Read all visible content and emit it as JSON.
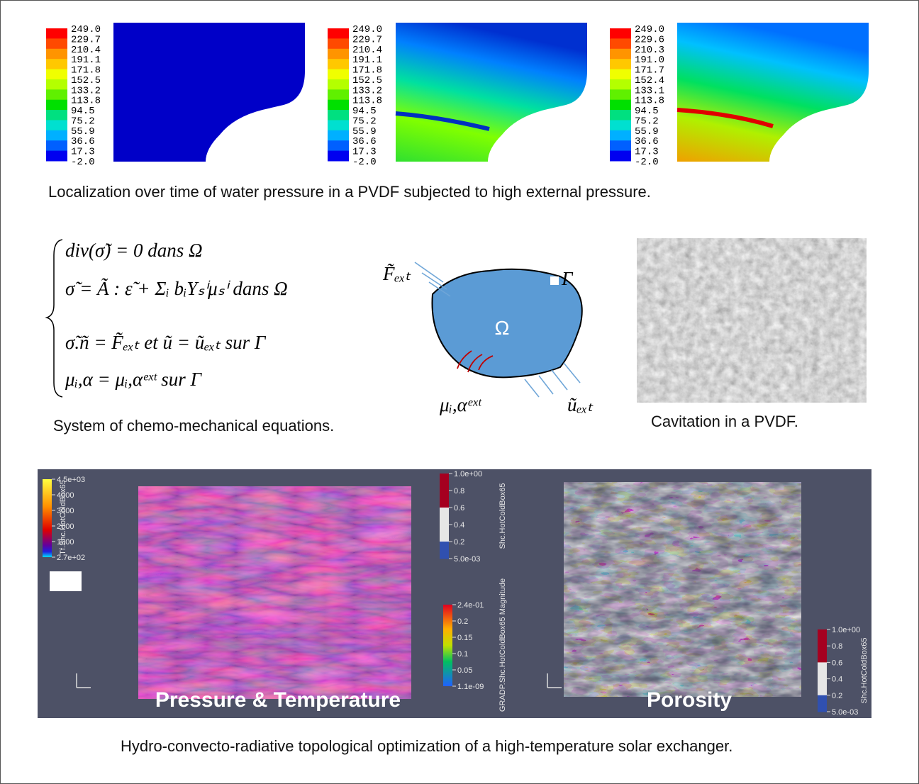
{
  "top_panels": [
    {
      "colorbar_labels": [
        "249.0",
        "229.7",
        "210.4",
        "191.1",
        "171.8",
        "152.5",
        "133.2",
        "113.8",
        "94.5",
        "75.2",
        "55.9",
        "36.6",
        "17.3",
        "-2.0"
      ]
    },
    {
      "colorbar_labels": [
        "249.0",
        "229.7",
        "210.4",
        "191.1",
        "171.8",
        "152.5",
        "133.2",
        "113.8",
        "94.5",
        "75.2",
        "55.9",
        "36.6",
        "17.3",
        "-2.0"
      ]
    },
    {
      "colorbar_labels": [
        "249.0",
        "229.6",
        "210.3",
        "191.0",
        "171.7",
        "152.4",
        "133.1",
        "113.8",
        "94.5",
        "75.2",
        "55.9",
        "36.6",
        "17.3",
        "-2.0"
      ]
    }
  ],
  "captions": {
    "localization": "Localization over time of water pressure in a PVDF subjected to high external pressure.",
    "equations": "System of chemo-mechanical equations.",
    "cavitation": "Cavitation in a PVDF.",
    "optimization": "Hydro-convecto-radiative topological optimization of a high-temperature solar exchanger."
  },
  "equations": [
    "div(σ̃) = 0    dans Ω",
    "σ̃ = Ã : ε̃ + Σᵢ bᵢYₛⁱμₛⁱ    dans Ω",
    "σ̃.ñ = F̃ₑₓₜ  et  ũ = ũₑₓₜ    sur Γ",
    "μᵢ,α = μᵢ,αᵉˣᵗ    sur Γ"
  ],
  "diagram": {
    "force": "F̃ₑₓₜ",
    "domain": "Ω",
    "boundary": "Γ",
    "potential": "μᵢ,αᵉˣᵗ",
    "displacement": "ũₑₓₜ"
  },
  "simulation": {
    "left_label": "Pressure & Temperature",
    "right_label": "Porosity",
    "colorbars": [
      {
        "title": "Tf.Shc.HotColdBox65",
        "labels": [
          "4.5e+03",
          "4000",
          "3000",
          "2000",
          "1000",
          "2.7e+02"
        ]
      },
      {
        "title": "Shc.HotColdBox65",
        "labels": [
          "1.0e+00",
          "0.8",
          "0.6",
          "0.4",
          "0.2",
          "5.0e-03"
        ]
      },
      {
        "title": "GRADP.Shc.HotColdBox65 Magnitude",
        "labels": [
          "2.4e-01",
          "0.2",
          "0.15",
          "0.1",
          "0.05",
          "1.1e-09"
        ]
      },
      {
        "title": "Shc.HotColdBox65",
        "labels": [
          "1.0e+00",
          "0.8",
          "0.6",
          "0.4",
          "0.2",
          "5.0e-03"
        ]
      }
    ]
  }
}
